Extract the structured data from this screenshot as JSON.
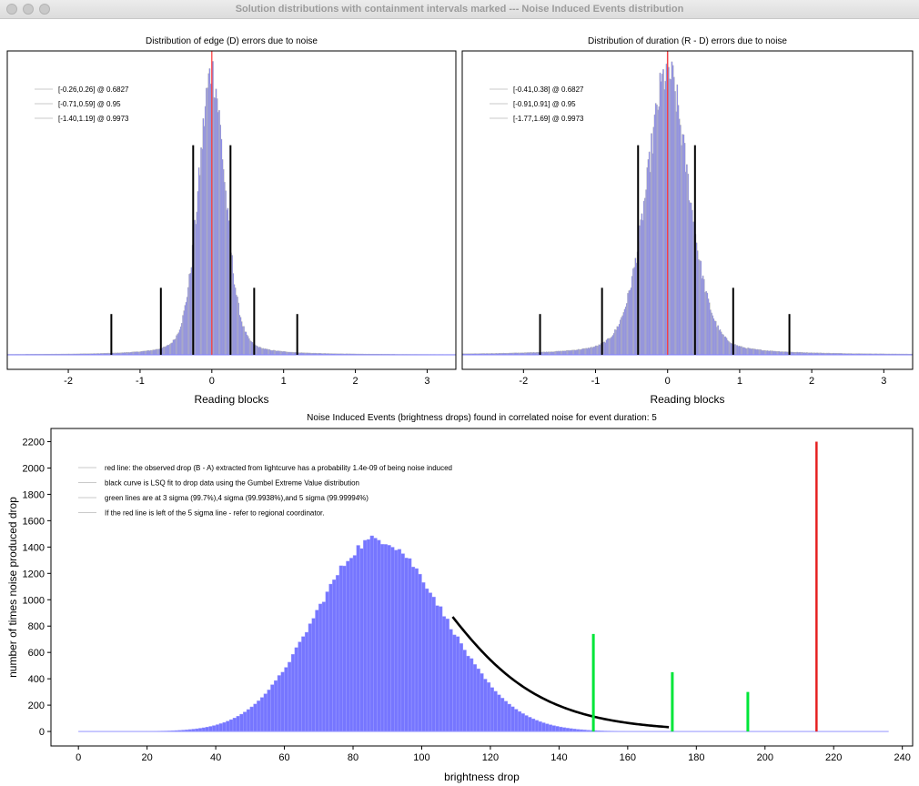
{
  "window": {
    "title": "Solution distributions with containment intervals marked --- Noise Induced Events distribution"
  },
  "colors": {
    "histogram_fill": "#7676ff",
    "histogram_edge": "#b8b8b8",
    "reference_line": "#ff3333",
    "interval_line": "#000000",
    "sigma_line": "#00e639",
    "observed_line": "#e62020",
    "fit_curve": "#000000"
  },
  "chart_data": [
    {
      "type": "bar",
      "title": "Distribution of edge (D) errors due to noise",
      "xlabel": "Reading blocks",
      "ylabel": "",
      "xlim": [
        -2.85,
        3.4
      ],
      "xticks": [
        -2,
        -1,
        0,
        1,
        2,
        3
      ],
      "y_ticks_shown": false,
      "distribution": {
        "center": 0.0,
        "sigma": 0.19,
        "heavy_tail": 0.3
      },
      "reference_line_x": 0.0,
      "legend": {
        "position": "top-left",
        "entries": [
          "[-0.26,0.26] @ 0.6827",
          "[-0.71,0.59] @ 0.95",
          "[-1.40,1.19] @ 0.9973"
        ]
      },
      "intervals": [
        {
          "low": -0.26,
          "high": 0.26,
          "level": 0.6827,
          "marker_height": 0.72
        },
        {
          "low": -0.71,
          "high": 0.59,
          "level": 0.95,
          "marker_height": 0.23
        },
        {
          "low": -1.4,
          "high": 1.19,
          "level": 0.9973,
          "marker_height": 0.14
        }
      ]
    },
    {
      "type": "bar",
      "title": "Distribution of duration (R - D) errors due to noise",
      "xlabel": "Reading blocks",
      "ylabel": "",
      "xlim": [
        -2.85,
        3.4
      ],
      "xticks": [
        -2,
        -1,
        0,
        1,
        2,
        3
      ],
      "y_ticks_shown": false,
      "distribution": {
        "center": 0.0,
        "sigma": 0.3,
        "heavy_tail": 0.3
      },
      "reference_line_x": 0.0,
      "legend": {
        "position": "top-left",
        "entries": [
          "[-0.41,0.38] @ 0.6827",
          "[-0.91,0.91] @ 0.95",
          "[-1.77,1.69] @ 0.9973"
        ]
      },
      "intervals": [
        {
          "low": -0.41,
          "high": 0.38,
          "level": 0.6827,
          "marker_height": 0.72
        },
        {
          "low": -0.91,
          "high": 0.91,
          "level": 0.95,
          "marker_height": 0.23
        },
        {
          "low": -1.77,
          "high": 1.69,
          "level": 0.9973,
          "marker_height": 0.14
        }
      ]
    },
    {
      "type": "bar",
      "title": "Noise Induced Events (brightness drops) found in correlated noise for event duration: 5",
      "xlabel": "brightness drop",
      "ylabel": "number of times noise produced drop",
      "xlim": [
        -8,
        243
      ],
      "ylim": [
        -110,
        2300
      ],
      "xticks": [
        0,
        20,
        40,
        60,
        80,
        100,
        120,
        140,
        160,
        180,
        200,
        220,
        240
      ],
      "yticks": [
        0,
        200,
        400,
        600,
        800,
        1000,
        1200,
        1400,
        1600,
        1800,
        2000,
        2200
      ],
      "histogram_peak": {
        "x": 87,
        "count": 1460
      },
      "legend": {
        "position": "top-left",
        "entries": [
          "red line: the observed drop (B - A) extracted from lightcurve has a probability 1.4e-09 of being noise induced",
          "black curve is LSQ fit to drop data using the Gumbel Extreme Value distribution",
          "green lines are at 3 sigma (99.7%),4 sigma (99.9938%),and 5 sigma (99.99994%)",
          "If the red line is left of the 5 sigma line - refer to regional coordinator."
        ]
      },
      "fit_curve": {
        "x_start": 109,
        "x_end": 172,
        "y_start": 870
      },
      "sigma_lines": [
        {
          "label": "3 sigma",
          "x": 150,
          "height": 740
        },
        {
          "label": "4 sigma",
          "x": 173,
          "height": 450
        },
        {
          "label": "5 sigma",
          "x": 195,
          "height": 300
        }
      ],
      "observed_line": {
        "x": 215,
        "height": 2200
      }
    }
  ]
}
